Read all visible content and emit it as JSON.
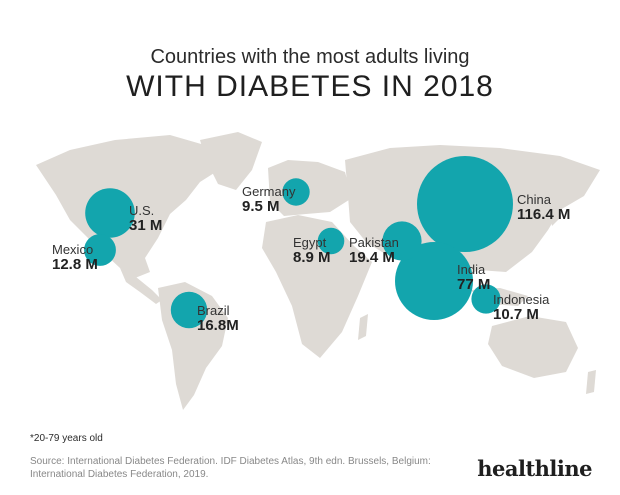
{
  "header": {
    "subtitle": "Countries with the most adults living",
    "title": "WITH DIABETES IN 2018"
  },
  "colors": {
    "bubble": "#13a5ad",
    "land": "#dedad5",
    "background": "#ffffff"
  },
  "map_data": {
    "unit": "M",
    "countries": [
      {
        "key": "china",
        "name": "China",
        "value_label": "116.4 M",
        "value": 116.4
      },
      {
        "key": "india",
        "name": "India",
        "value_label": "77 M",
        "value": 77
      },
      {
        "key": "us",
        "name": "U.S.",
        "value_label": "31 M",
        "value": 31
      },
      {
        "key": "pakistan",
        "name": "Pakistan",
        "value_label": "19.4 M",
        "value": 19.4
      },
      {
        "key": "brazil",
        "name": "Brazil",
        "value_label": "16.8M",
        "value": 16.8
      },
      {
        "key": "mexico",
        "name": "Mexico",
        "value_label": "12.8 M",
        "value": 12.8
      },
      {
        "key": "indonesia",
        "name": "Indonesia",
        "value_label": "10.7 M",
        "value": 10.7
      },
      {
        "key": "germany",
        "name": "Germany",
        "value_label": "9.5 M",
        "value": 9.5
      },
      {
        "key": "egypt",
        "name": "Egypt",
        "value_label": "8.9 M",
        "value": 8.9
      }
    ]
  },
  "footer": {
    "note": "*20-79 years old",
    "source": "Source: International Diabetes Federation. IDF Diabetes Atlas, 9th edn. Brussels, Belgium: International Diabetes Federation, 2019.",
    "brand": "healthline"
  }
}
